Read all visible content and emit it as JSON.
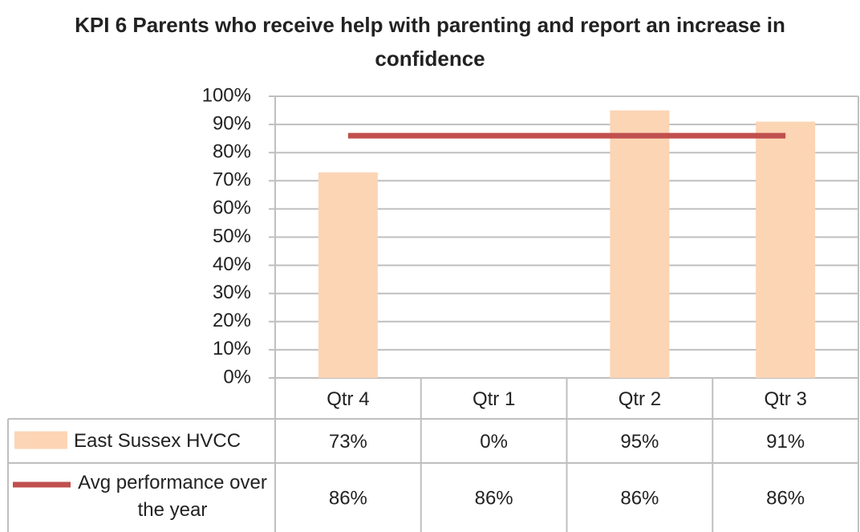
{
  "chart_data": {
    "type": "bar",
    "title": "KPI 6 Parents who receive help with parenting and report an increase in confidence",
    "categories": [
      "Qtr 4",
      "Qtr 1",
      "Qtr 2",
      "Qtr 3"
    ],
    "series": [
      {
        "name": "East Sussex HVCC",
        "type": "bar",
        "color": "#fcd5b5",
        "values": [
          73,
          0,
          95,
          91
        ],
        "value_labels": [
          "73%",
          "0%",
          "95%",
          "91%"
        ]
      },
      {
        "name": "Avg performance over the year",
        "type": "line",
        "color": "#c0504d",
        "values": [
          86,
          86,
          86,
          86
        ],
        "value_labels": [
          "86%",
          "86%",
          "86%",
          "86%"
        ]
      }
    ],
    "ylim": [
      0,
      100
    ],
    "yticks": [
      {
        "value": 0,
        "label": "0%"
      },
      {
        "value": 10,
        "label": "10%"
      },
      {
        "value": 20,
        "label": "20%"
      },
      {
        "value": 30,
        "label": "30%"
      },
      {
        "value": 40,
        "label": "40%"
      },
      {
        "value": 50,
        "label": "50%"
      },
      {
        "value": 60,
        "label": "60%"
      },
      {
        "value": 70,
        "label": "70%"
      },
      {
        "value": 80,
        "label": "80%"
      },
      {
        "value": 90,
        "label": "90%"
      },
      {
        "value": 100,
        "label": "100%"
      }
    ],
    "grid": true
  }
}
